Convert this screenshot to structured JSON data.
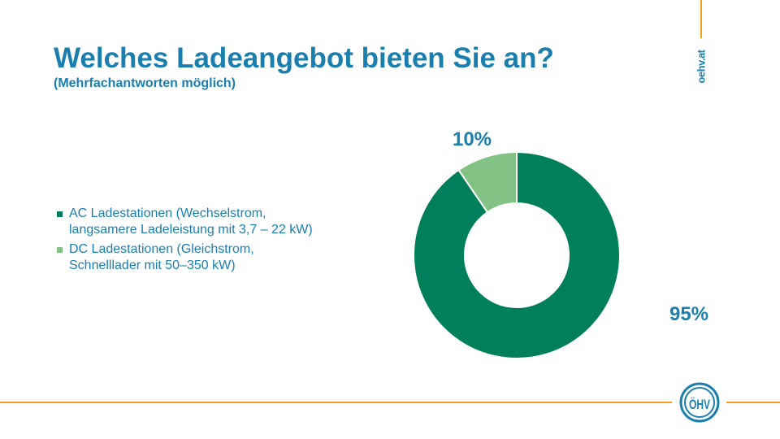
{
  "title": "Welches Ladeangebot bieten Sie an?",
  "subtitle": "(Mehrfachantworten möglich)",
  "website": "oehv.at",
  "logo_text": "ÖHV",
  "colors": {
    "accent": "#1a7fae",
    "orange": "#f0a01e",
    "ac": "#00805a",
    "dc": "#82c385"
  },
  "chart_data": {
    "type": "pie",
    "variant": "donut",
    "categories": [
      "AC Ladestationen (Wechselstrom, langsamere Ladeleistung mit 3,7 – 22 kW)",
      "DC Ladestationen (Gleichstrom, Schnelllader mit 50–350 kW)"
    ],
    "values": [
      95,
      10
    ],
    "data_labels": [
      "95%",
      "10%"
    ],
    "title": "Welches Ladeangebot bieten Sie an?",
    "legend": "left"
  }
}
